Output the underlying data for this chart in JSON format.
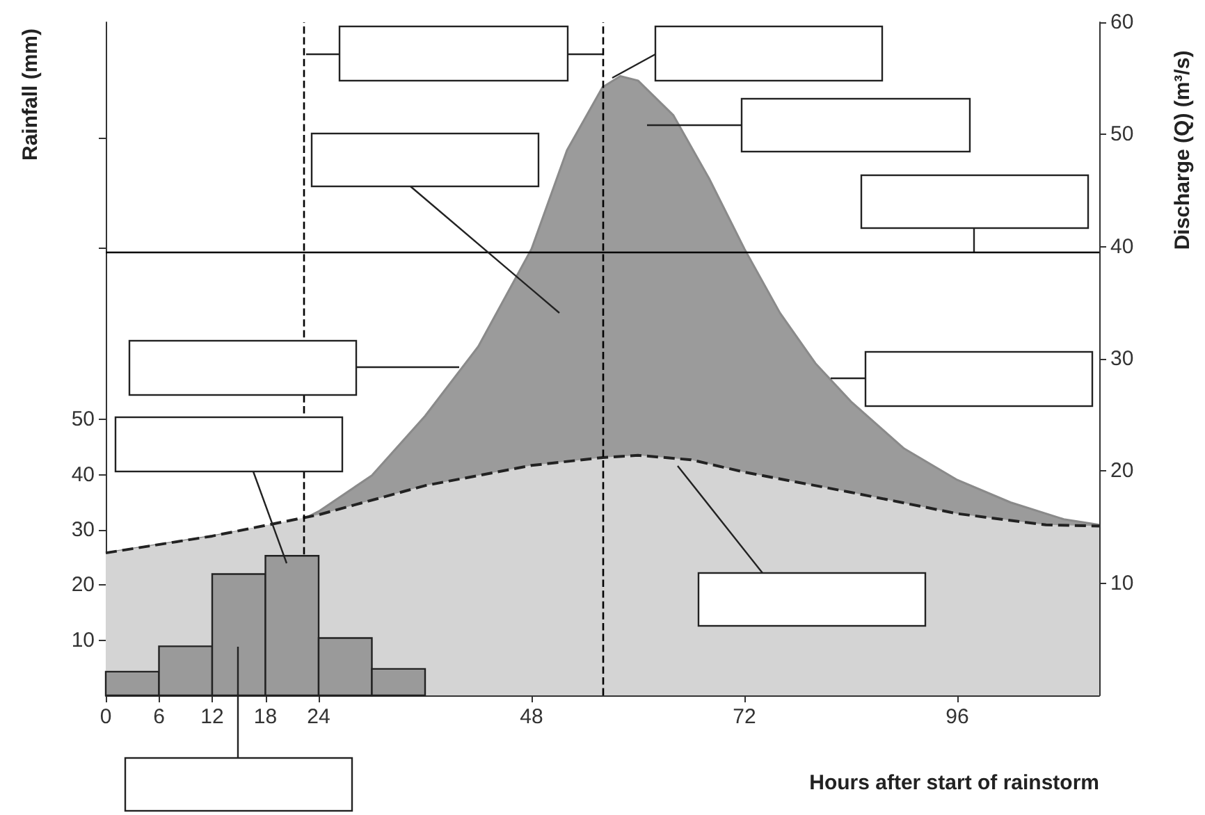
{
  "chart_data": {
    "type": "area",
    "xlabel": "Hours after start of rainstorm",
    "ylabel": "Rainfall (mm)",
    "y2label": "Discharge (Q) (m³/s)",
    "xlim": [
      0,
      112
    ],
    "xticks": [
      0,
      6,
      12,
      18,
      24,
      48,
      72,
      96
    ],
    "ylim": [
      0,
      122
    ],
    "yticks": [
      10,
      20,
      30,
      40,
      50,
      {
        "value": 81,
        "label": null
      },
      {
        "value": 101,
        "label": null
      }
    ],
    "y2lim": [
      0,
      60
    ],
    "y2ticks": [
      10,
      20,
      30,
      40,
      50,
      60
    ],
    "grid": false,
    "series": [
      {
        "type": "histogram",
        "color": "#9a9a9a",
        "bins": [
          0,
          6,
          12,
          18,
          24,
          30,
          36
        ],
        "values": [
          4.3,
          8.9,
          22,
          25.3,
          10.4,
          4.8
        ]
      },
      {
        "type": "area",
        "axis": "y2",
        "color": "#9b9b9b",
        "line_style": "solid",
        "x": [
          0,
          12,
          22,
          24,
          30,
          36,
          42,
          48,
          52,
          56,
          58,
          60,
          64,
          68,
          72,
          76,
          80,
          84,
          90,
          96,
          102,
          108,
          112
        ],
        "values": [
          12.7,
          14.2,
          15.6,
          16.4,
          19.6,
          24.9,
          31.1,
          39.8,
          48.6,
          54.2,
          55.2,
          54.8,
          51.7,
          46.1,
          39.8,
          34.1,
          29.6,
          26.2,
          22,
          19.2,
          17.2,
          15.7,
          15.2
        ]
      },
      {
        "type": "area",
        "axis": "y2",
        "color": "#d4d4d4",
        "line_style": "dashed",
        "x": [
          0,
          12,
          24,
          36,
          48,
          56,
          60,
          66,
          72,
          84,
          96,
          106,
          112
        ],
        "values": [
          12.7,
          14.2,
          16.1,
          18.7,
          20.5,
          21.2,
          21.4,
          21,
          19.9,
          18.1,
          16.2,
          15.2,
          15.1
        ]
      }
    ],
    "ref_lines": [
      {
        "axis": "y2",
        "value": 39.5,
        "color": "#000000",
        "line_style": "solid"
      },
      {
        "axis": "x",
        "value": 22.3,
        "color": "#000000",
        "line_style": "dashed"
      },
      {
        "axis": "x",
        "value": 56,
        "color": "#000000",
        "line_style": "dashed"
      }
    ]
  }
}
